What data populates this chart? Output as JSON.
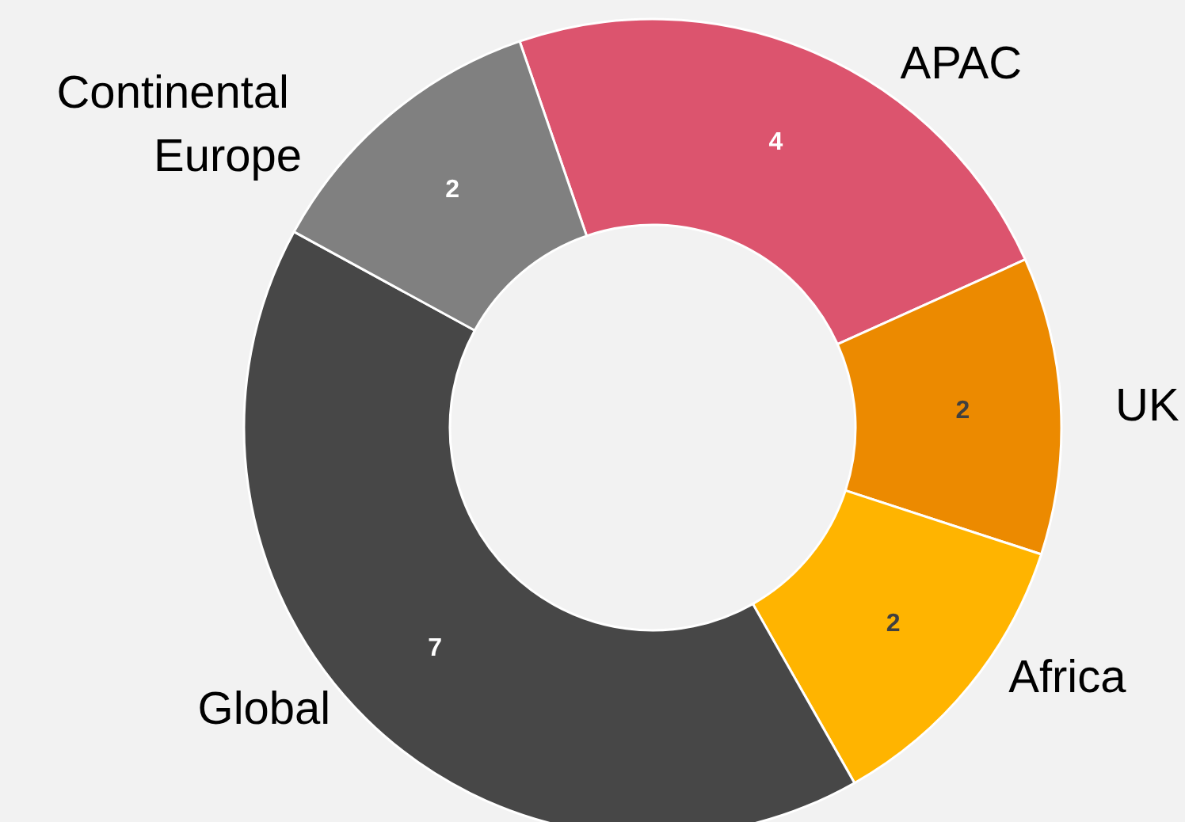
{
  "chart_data": {
    "type": "donut",
    "categories": [
      "APAC",
      "UK",
      "Africa",
      "Global",
      "Continental Europe"
    ],
    "values": [
      4,
      2,
      2,
      7,
      2
    ],
    "colors": [
      "#dc546e",
      "#ec8a00",
      "#ffb400",
      "#474747",
      "#808080"
    ],
    "data_labels": true,
    "legend": false
  }
}
